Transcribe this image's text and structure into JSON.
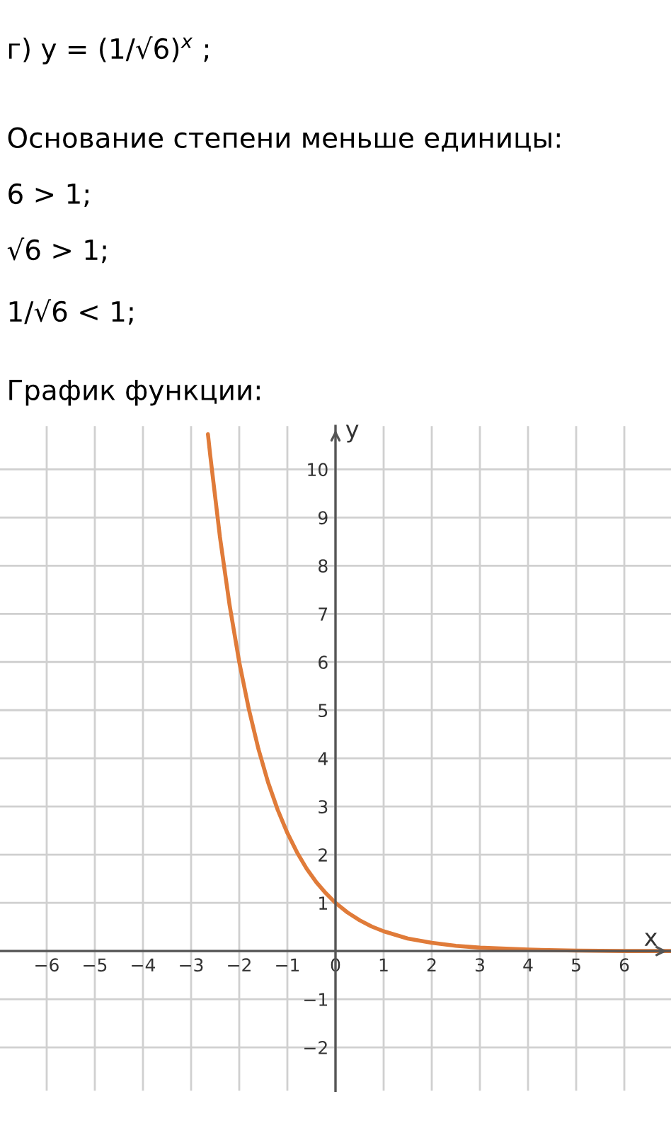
{
  "chart_data": {
    "type": "line",
    "annotations": [
      "г) y = (1/√6)$^{x}$ ;",
      "Основание степени меньше единицы:",
      "6 > 1;",
      "√6 > 1;",
      "1/√6 < 1;",
      "График функции:"
    ],
    "xlabel": "x",
    "ylabel": "y",
    "x": [
      -2.65,
      -2.6,
      -2.4,
      -2.2,
      -2,
      -1.8,
      -1.6,
      -1.4,
      -1.2,
      -1,
      -0.8,
      -0.6,
      -0.4,
      -0.2,
      0,
      0.25,
      0.5,
      0.75,
      1,
      1.5,
      2,
      2.5,
      3,
      4,
      5,
      6,
      6.97
    ],
    "series": [
      {
        "color": "#e07b39",
        "values": [
          10.73,
          10.27,
          8.59,
          7.18,
          6,
          5.02,
          4.19,
          3.5,
          2.93,
          2.45,
          2.05,
          1.71,
          1.43,
          1.2,
          1,
          0.8,
          0.64,
          0.51,
          0.41,
          0.26,
          0.17,
          0.11,
          0.07,
          0.03,
          0.01,
          0,
          0
        ]
      }
    ],
    "xlim": [
      -6.97,
      6.97
    ],
    "ylim": [
      -2.9,
      10.9
    ],
    "xticks": [
      -6,
      -5,
      -4,
      -3,
      -2,
      -1,
      0,
      1,
      2,
      3,
      4,
      5,
      6
    ],
    "yticks": [
      -2,
      -1,
      {
        "value": 0,
        "label": null
      },
      1,
      2,
      3,
      4,
      5,
      6,
      7,
      8,
      9,
      10
    ],
    "grid": true,
    "marker": "none",
    "line_style": "solid"
  }
}
